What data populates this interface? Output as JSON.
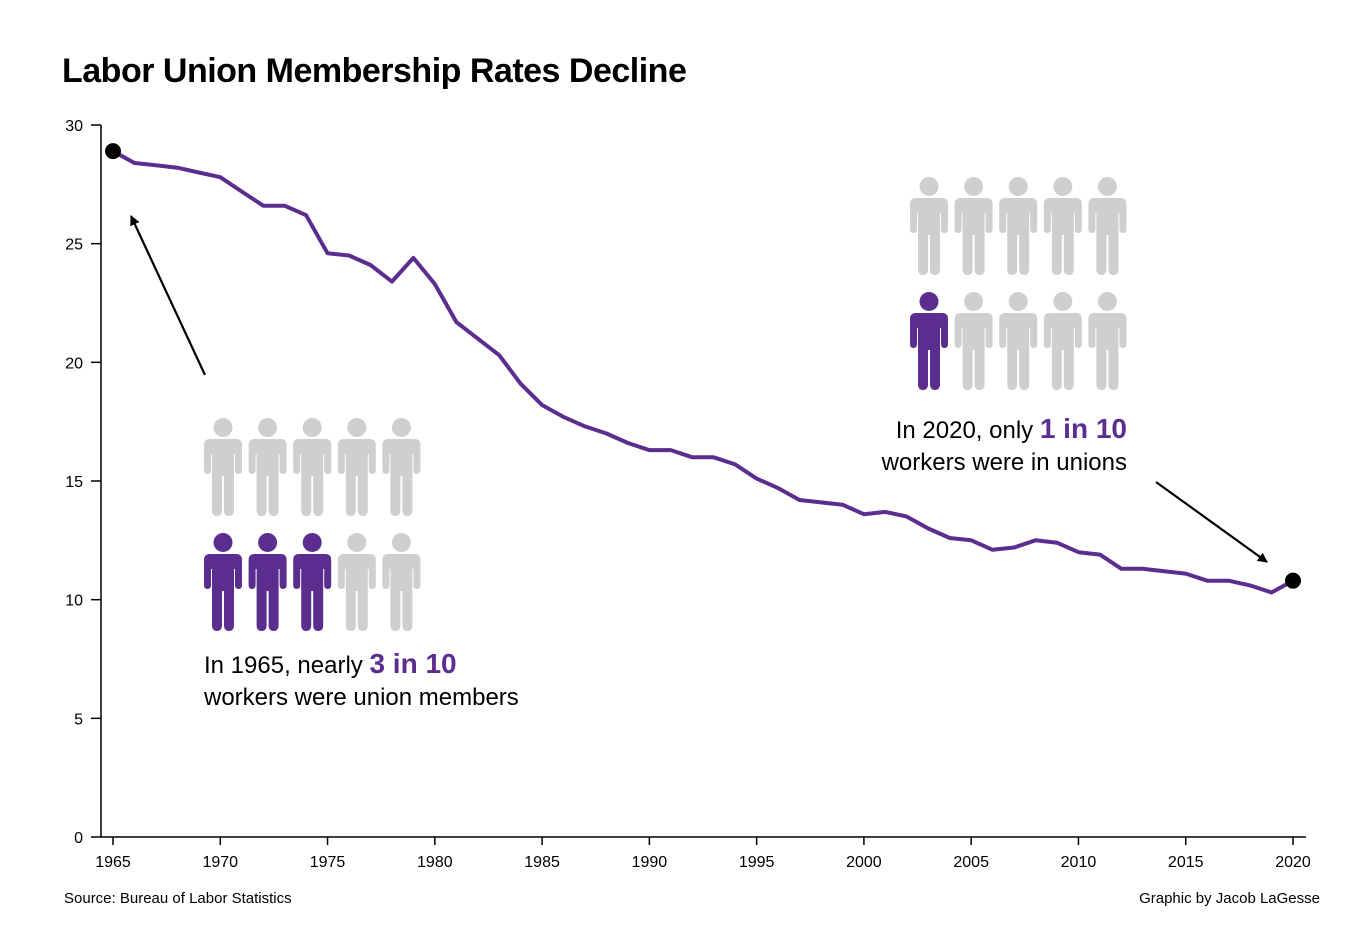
{
  "title": "Labor Union Membership Rates Decline",
  "source": "Source: Bureau of Labor Statistics",
  "credit": "Graphic by Jacob LaGesse",
  "colors": {
    "line": "#5b2d8e",
    "highlight_person": "#5b2d8e",
    "grey_person": "#cfcfcf",
    "marker": "#000000",
    "axis": "#000000"
  },
  "annotations": {
    "a1965": {
      "prefix": "In 1965, nearly ",
      "highlight": "3 in 10",
      "line2": "workers were union members",
      "pictogram": {
        "total": 10,
        "highlighted": 3
      }
    },
    "a2020": {
      "prefix": "In 2020, only ",
      "highlight": "1 in 10",
      "line2": "workers were in unions",
      "pictogram": {
        "total": 10,
        "highlighted": 1
      }
    }
  },
  "chart_data": {
    "type": "line",
    "title": "Labor Union Membership Rates Decline",
    "xlabel": "",
    "ylabel": "",
    "xlim": [
      1965,
      2020
    ],
    "ylim": [
      0,
      30
    ],
    "x_ticks": [
      1965,
      1970,
      1975,
      1980,
      1985,
      1990,
      1995,
      2000,
      2005,
      2010,
      2015,
      2020
    ],
    "y_ticks": [
      0,
      5,
      10,
      15,
      20,
      25,
      30
    ],
    "grid": false,
    "legend": "none",
    "series": [
      {
        "x": [
          1965,
          1966,
          1967,
          1968,
          1969,
          1970,
          1971,
          1972,
          1973,
          1974,
          1975,
          1976,
          1977,
          1978,
          1979,
          1980,
          1981,
          1982,
          1983,
          1984,
          1985,
          1986,
          1987,
          1988,
          1989,
          1990,
          1991,
          1992,
          1993,
          1994,
          1995,
          1996,
          1997,
          1998,
          1999,
          2000,
          2001,
          2002,
          2003,
          2004,
          2005,
          2006,
          2007,
          2008,
          2009,
          2010,
          2011,
          2012,
          2013,
          2014,
          2015,
          2016,
          2017,
          2018,
          2019,
          2020
        ],
        "values": [
          28.9,
          28.4,
          28.3,
          28.2,
          28.0,
          27.8,
          27.2,
          26.6,
          26.6,
          26.2,
          24.6,
          24.5,
          24.1,
          23.4,
          24.4,
          23.3,
          21.7,
          21.0,
          20.3,
          19.1,
          18.2,
          17.7,
          17.3,
          17.0,
          16.6,
          16.3,
          16.3,
          16.0,
          16.0,
          15.7,
          15.1,
          14.7,
          14.2,
          14.1,
          14.0,
          13.6,
          13.7,
          13.5,
          13.0,
          12.6,
          12.5,
          12.1,
          12.2,
          12.5,
          12.4,
          12.0,
          11.9,
          11.3,
          11.3,
          11.2,
          11.1,
          10.8,
          10.8,
          10.6,
          10.3,
          10.8
        ]
      }
    ],
    "highlighted_points": [
      {
        "x": 1965,
        "y": 28.9
      },
      {
        "x": 2020,
        "y": 10.8
      }
    ]
  }
}
